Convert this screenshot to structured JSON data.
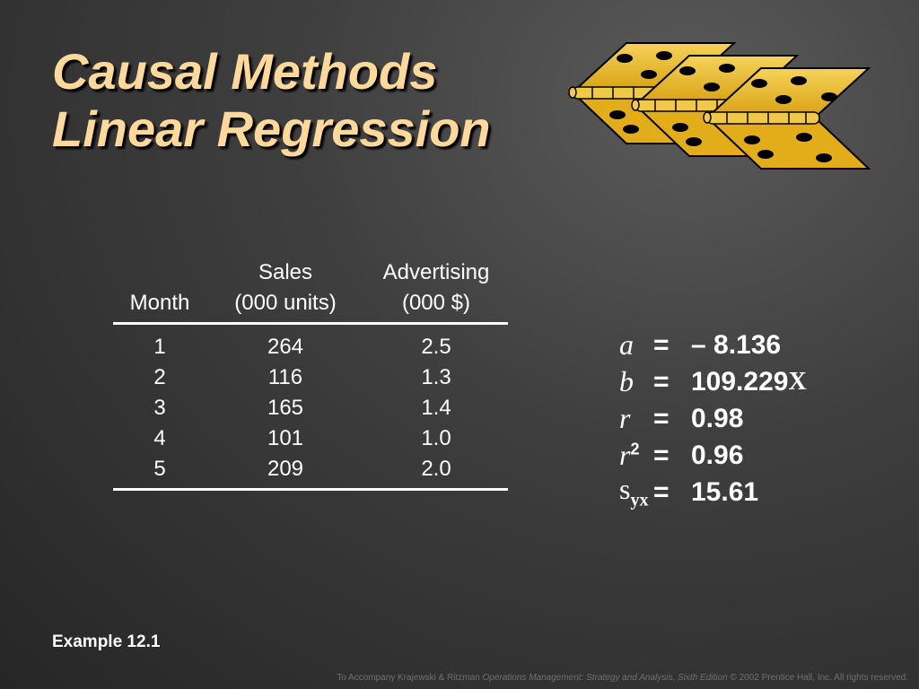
{
  "title": {
    "line1": "Causal Methods",
    "line2": "Linear Regression"
  },
  "table": {
    "headers": {
      "month": [
        "",
        "Month"
      ],
      "sales": [
        "Sales",
        "(000 units)"
      ],
      "advertising": [
        "Advertising",
        "(000 $)"
      ]
    },
    "rows": [
      {
        "month": "1",
        "sales": "264",
        "advertising": "2.5"
      },
      {
        "month": "2",
        "sales": "116",
        "advertising": "1.3"
      },
      {
        "month": "3",
        "sales": "165",
        "advertising": "1.4"
      },
      {
        "month": "4",
        "sales": "101",
        "advertising": "1.0"
      },
      {
        "month": "5",
        "sales": "209",
        "advertising": "2.0"
      }
    ]
  },
  "stats": {
    "a": {
      "symbol": "a",
      "eq": "=",
      "value": "– 8.136"
    },
    "b": {
      "symbol": "b",
      "eq": "=",
      "value": "109.229",
      "var": "X"
    },
    "r": {
      "symbol": "r",
      "eq": "=",
      "value": "0.98"
    },
    "r2": {
      "symbol": "r",
      "sup": "2",
      "eq": "=",
      "value": "0.96"
    },
    "syx": {
      "symbol": "s",
      "sub": "yx",
      "eq": "=",
      "value": "15.61"
    }
  },
  "example": "Example 12.1",
  "footer": {
    "prefix": "To Accompany Krajewski & Ritzman ",
    "book": "Operations Management: Strategy and Analysis, Sixth Edition",
    "suffix": " © 2002 Prentice Hall, Inc. All rights reserved."
  },
  "colors": {
    "title": "#ffd99a",
    "hinge": "#e8b520",
    "background": "#3f3f3f"
  }
}
